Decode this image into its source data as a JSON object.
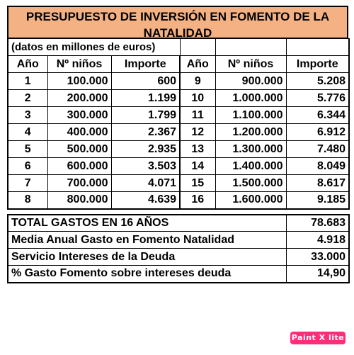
{
  "title": "PRESUPUESTO DE INVERSIÓN EN FOMENTO DE LA NATALIDAD",
  "note": "(datos en millones de euros)",
  "headers": {
    "year": "Año",
    "children": "Nº niños",
    "amount": "Importe"
  },
  "rows_left": [
    {
      "year": "1",
      "children": "100.000",
      "amount": "600"
    },
    {
      "year": "2",
      "children": "200.000",
      "amount": "1.199"
    },
    {
      "year": "3",
      "children": "300.000",
      "amount": "1.799"
    },
    {
      "year": "4",
      "children": "400.000",
      "amount": "2.367"
    },
    {
      "year": "5",
      "children": "500.000",
      "amount": "2.935"
    },
    {
      "year": "6",
      "children": "600.000",
      "amount": "3.503"
    },
    {
      "year": "7",
      "children": "700.000",
      "amount": "4.071"
    },
    {
      "year": "8",
      "children": "800.000",
      "amount": "4.639"
    }
  ],
  "rows_right": [
    {
      "year": "9",
      "children": "900.000",
      "amount": "5.208"
    },
    {
      "year": "10",
      "children": "1.000.000",
      "amount": "5.776"
    },
    {
      "year": "11",
      "children": "1.100.000",
      "amount": "6.344"
    },
    {
      "year": "12",
      "children": "1.200.000",
      "amount": "6.912"
    },
    {
      "year": "13",
      "children": "1.300.000",
      "amount": "7.480"
    },
    {
      "year": "14",
      "children": "1.400.000",
      "amount": "8.049"
    },
    {
      "year": "15",
      "children": "1.500.000",
      "amount": "8.617"
    },
    {
      "year": "16",
      "children": "1.600.000",
      "amount": "9.185"
    }
  ],
  "summary": [
    {
      "label": "TOTAL GASTOS EN 16 AÑOS",
      "value": "78.683"
    },
    {
      "label": "Media Anual Gasto en Fomento Natalidad",
      "value": "4.918"
    },
    {
      "label": "Servicio Intereses de la Deuda",
      "value": "33.000"
    },
    {
      "label": "%  Gasto Fomento sobre intereses deuda",
      "value": "14,90"
    }
  ],
  "watermark": "Paint X lite",
  "colors": {
    "title_bg": "#f4b183",
    "badge_bg": "#ff2d7a"
  }
}
